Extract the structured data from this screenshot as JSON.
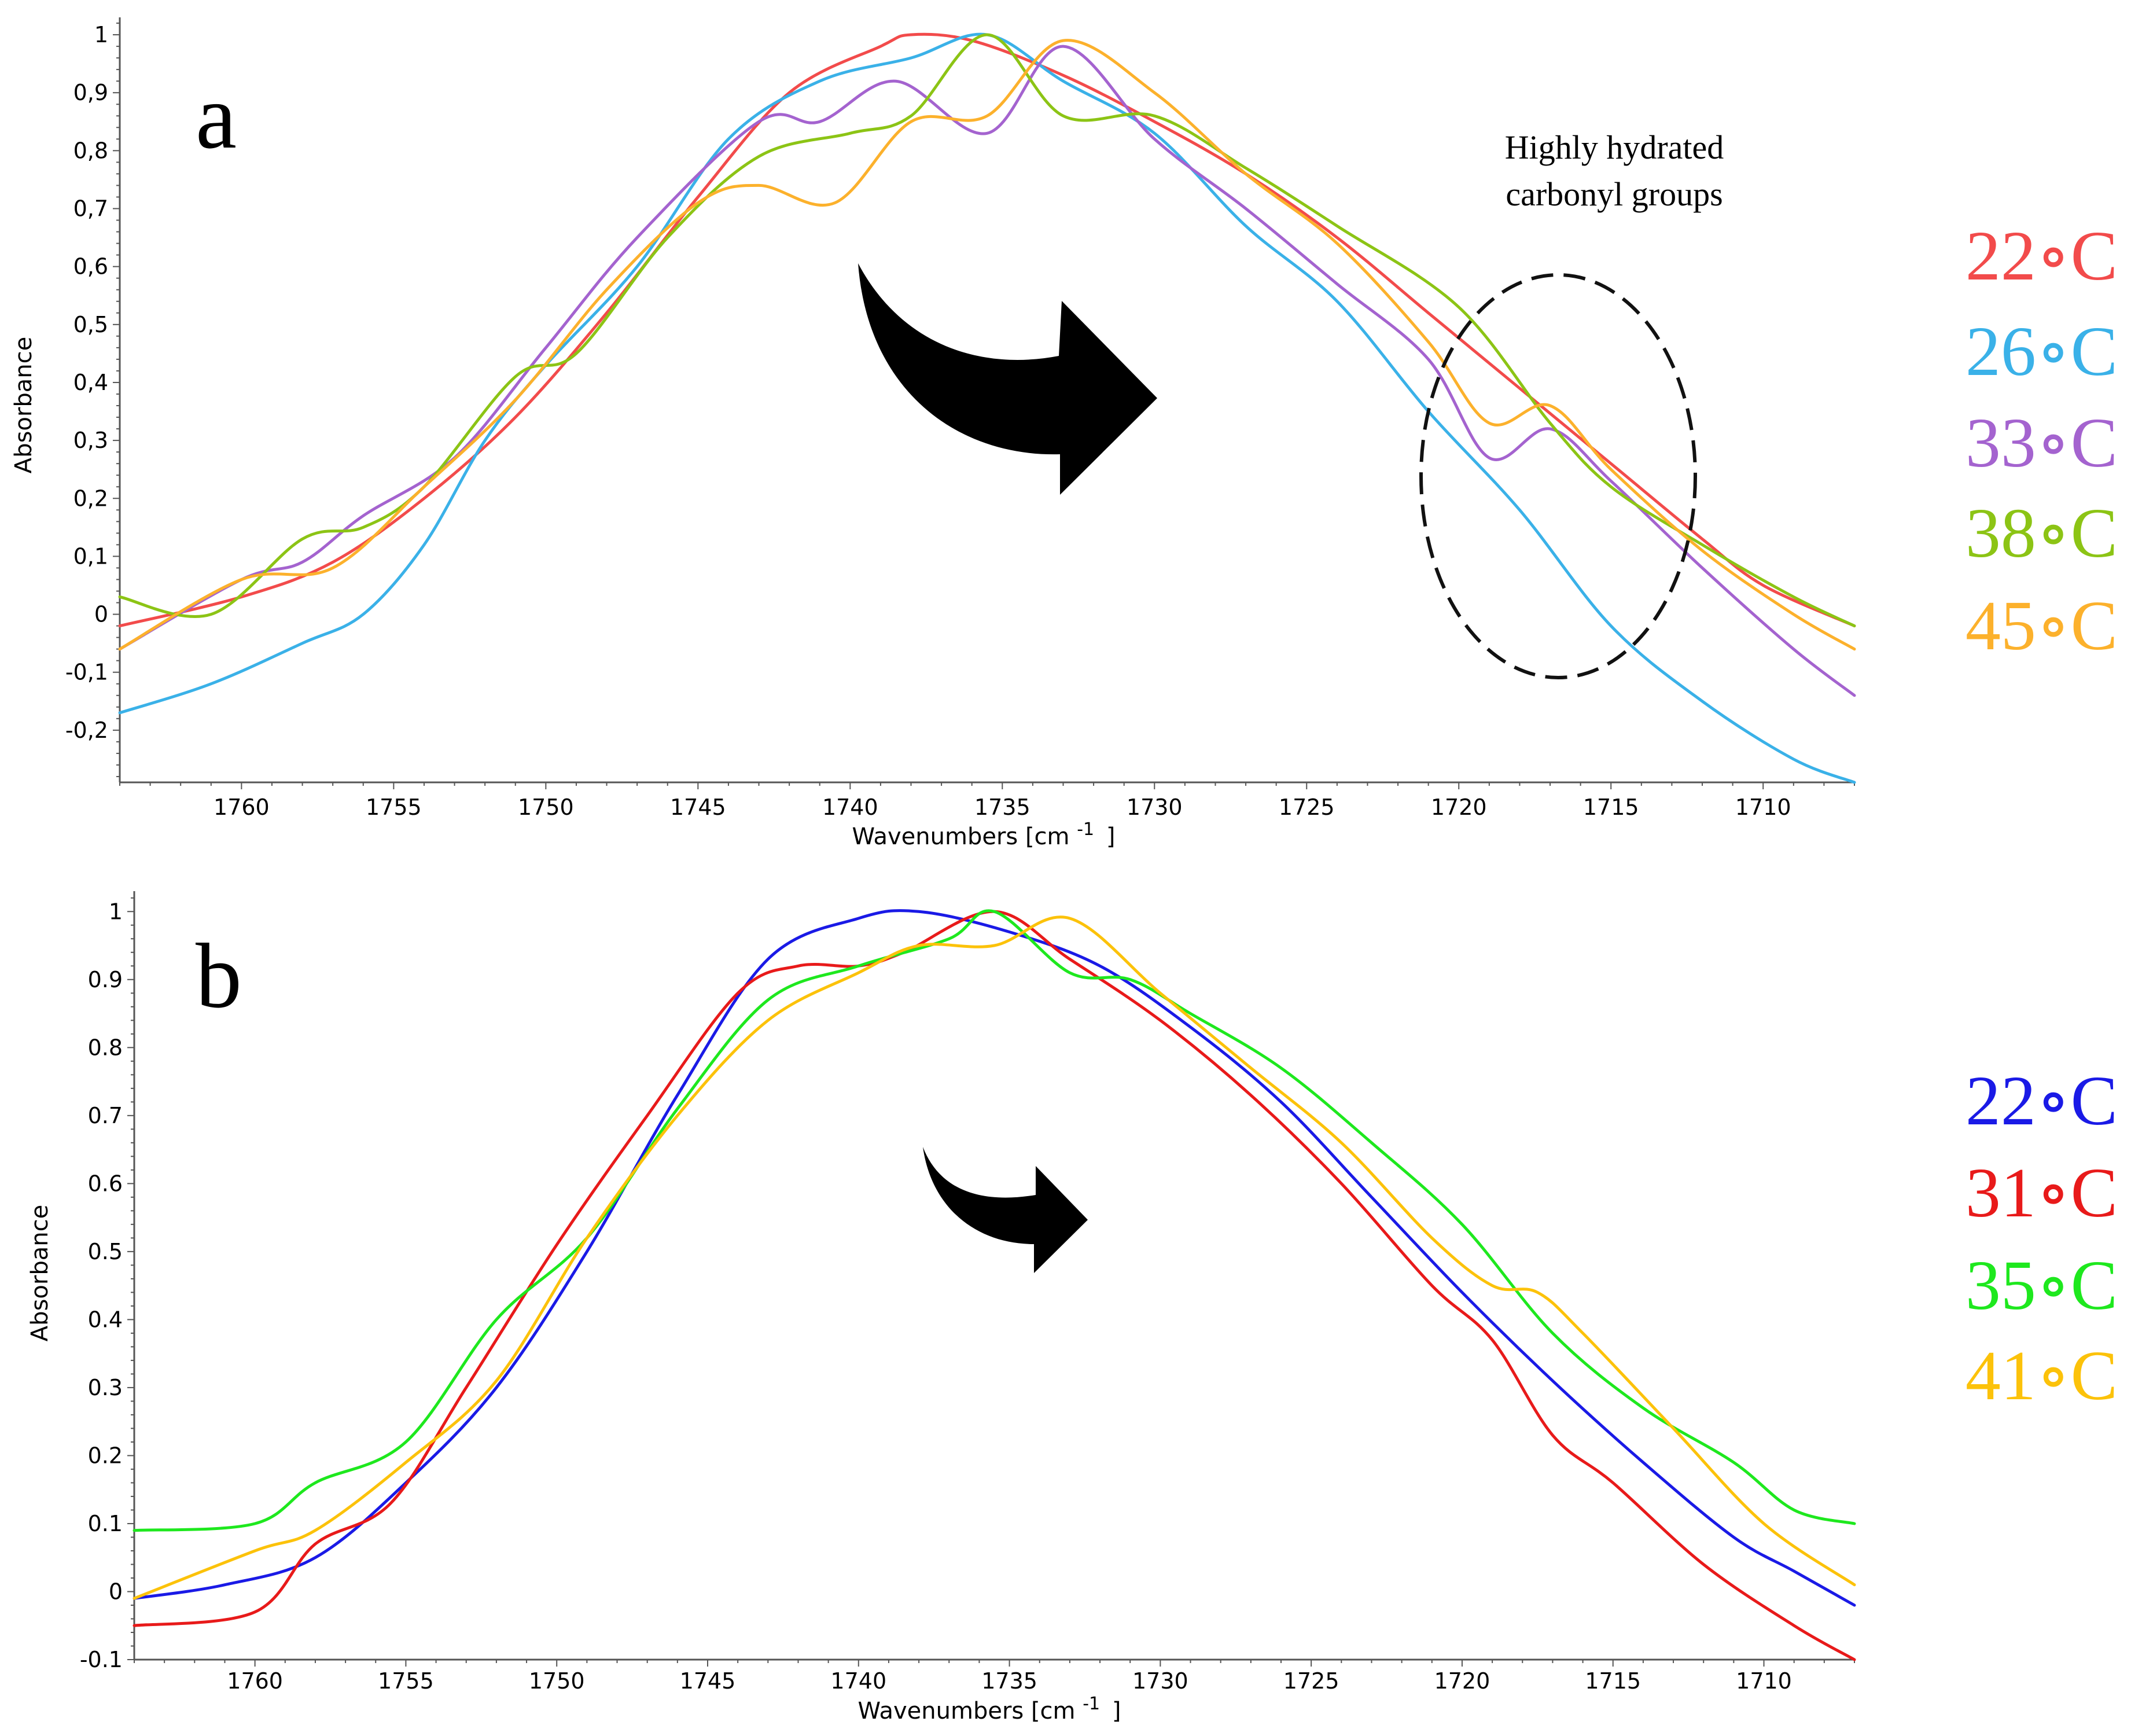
{
  "chart_data": [
    {
      "type": "line",
      "panel_label": "a",
      "xlabel": "Wavenumbers [cm",
      "xlabel_sup": "-1",
      "xlabel_end": "]",
      "ylabel": "Absorbance",
      "xlim": [
        1764,
        1707
      ],
      "ylim": [
        -0.29,
        1.03
      ],
      "x_ticks": [
        1760,
        1755,
        1750,
        1745,
        1740,
        1735,
        1730,
        1725,
        1720,
        1715,
        1710
      ],
      "x_tick_labels": [
        "1760",
        "1755",
        "1750",
        "1745",
        "1740",
        "1735",
        "1730",
        "1725",
        "1720",
        "1715",
        "1710"
      ],
      "y_ticks": [
        1,
        0.9,
        0.8,
        0.7,
        0.6,
        0.5,
        0.4,
        0.3,
        0.2,
        0.1,
        0,
        -0.1,
        -0.2
      ],
      "y_tick_labels": [
        "1",
        "0,9",
        "0,8",
        "0,7",
        "0,6",
        "0,5",
        "0,4",
        "0,3",
        "0,2",
        "0,1",
        "0",
        "-0,1",
        "-0,2"
      ],
      "annotation": [
        "Highly hydrated",
        "carbonyl groups"
      ],
      "series": [
        {
          "name": "22∘C",
          "color": "#f24b4b",
          "x": [
            1764,
            1760,
            1757,
            1754,
            1751,
            1748,
            1745,
            1742,
            1739,
            1738,
            1736,
            1733,
            1730,
            1727,
            1724,
            1721,
            1718,
            1715,
            1712,
            1710,
            1707
          ],
          "y": [
            -0.02,
            0.03,
            0.09,
            0.2,
            0.34,
            0.52,
            0.72,
            0.9,
            0.98,
            1.0,
            0.99,
            0.93,
            0.85,
            0.76,
            0.65,
            0.52,
            0.39,
            0.26,
            0.13,
            0.05,
            -0.02
          ]
        },
        {
          "name": "26∘C",
          "color": "#3ab1e8",
          "x": [
            1764,
            1761,
            1758,
            1756,
            1754,
            1752,
            1750,
            1747,
            1744,
            1741,
            1738,
            1735.5,
            1733,
            1730,
            1727,
            1724,
            1721,
            1718,
            1715,
            1712,
            1709,
            1707
          ],
          "y": [
            -0.17,
            -0.12,
            -0.05,
            0.0,
            0.12,
            0.3,
            0.43,
            0.6,
            0.82,
            0.92,
            0.96,
            1.0,
            0.92,
            0.83,
            0.67,
            0.54,
            0.35,
            0.18,
            -0.02,
            -0.15,
            -0.25,
            -0.29
          ]
        },
        {
          "name": "33∘C",
          "color": "#a463cf",
          "x": [
            1764,
            1760,
            1758,
            1756,
            1753,
            1750,
            1747,
            1743,
            1741,
            1738.5,
            1735.5,
            1733,
            1730,
            1727,
            1724,
            1721,
            1719,
            1717,
            1715,
            1712,
            1709,
            1707
          ],
          "y": [
            -0.06,
            0.06,
            0.09,
            0.17,
            0.27,
            0.46,
            0.65,
            0.85,
            0.85,
            0.92,
            0.83,
            0.98,
            0.82,
            0.7,
            0.57,
            0.44,
            0.27,
            0.32,
            0.23,
            0.08,
            -0.06,
            -0.14
          ]
        },
        {
          "name": "38∘C",
          "color": "#8cc415",
          "x": [
            1764,
            1761,
            1758,
            1756,
            1754,
            1751,
            1749,
            1746,
            1743,
            1740,
            1738,
            1735.5,
            1733,
            1730,
            1727,
            1724,
            1720,
            1717,
            1715,
            1712,
            1709,
            1707
          ],
          "y": [
            0.03,
            0.0,
            0.13,
            0.15,
            0.22,
            0.41,
            0.45,
            0.65,
            0.79,
            0.83,
            0.86,
            1.0,
            0.86,
            0.86,
            0.77,
            0.67,
            0.53,
            0.33,
            0.22,
            0.12,
            0.03,
            -0.02
          ]
        },
        {
          "name": "45∘C",
          "color": "#fcb12c",
          "x": [
            1764,
            1760,
            1757,
            1754,
            1751,
            1748,
            1745,
            1743,
            1740.5,
            1738,
            1735.5,
            1733,
            1730,
            1727,
            1724,
            1721,
            1719,
            1717,
            1715,
            1712,
            1709,
            1707
          ],
          "y": [
            -0.06,
            0.06,
            0.08,
            0.22,
            0.37,
            0.56,
            0.71,
            0.74,
            0.71,
            0.85,
            0.86,
            0.99,
            0.9,
            0.76,
            0.64,
            0.47,
            0.33,
            0.36,
            0.25,
            0.11,
            0.0,
            -0.06
          ]
        }
      ]
    },
    {
      "type": "line",
      "panel_label": "b",
      "xlabel": "Wavenumbers [cm",
      "xlabel_sup": "-1",
      "xlabel_end": "]",
      "ylabel": "Absorbance",
      "xlim": [
        1764,
        1707
      ],
      "ylim": [
        -0.1,
        1.03
      ],
      "x_ticks": [
        1760,
        1755,
        1750,
        1745,
        1740,
        1735,
        1730,
        1725,
        1720,
        1715,
        1710
      ],
      "x_tick_labels": [
        "1760",
        "1755",
        "1750",
        "1745",
        "1740",
        "1735",
        "1730",
        "1725",
        "1720",
        "1715",
        "1710"
      ],
      "y_ticks": [
        1,
        0.9,
        0.8,
        0.7,
        0.6,
        0.5,
        0.4,
        0.3,
        0.2,
        0.1,
        0,
        -0.1
      ],
      "y_tick_labels": [
        "1",
        "0.9",
        "0.8",
        "0.7",
        "0.6",
        "0.5",
        "0.4",
        "0.3",
        "0.2",
        "0.1",
        "0",
        "-0.1"
      ],
      "series": [
        {
          "name": "22∘C",
          "color": "#1a1ae6",
          "x": [
            1764,
            1761,
            1758,
            1755,
            1752,
            1749,
            1746,
            1743,
            1740,
            1738,
            1735,
            1732,
            1729,
            1726,
            1723,
            1720,
            1717,
            1714,
            1711,
            1709,
            1707
          ],
          "y": [
            -0.01,
            0.01,
            0.05,
            0.16,
            0.3,
            0.5,
            0.73,
            0.93,
            0.99,
            1.0,
            0.97,
            0.92,
            0.83,
            0.72,
            0.58,
            0.44,
            0.31,
            0.19,
            0.08,
            0.03,
            -0.02
          ]
        },
        {
          "name": "31∘C",
          "color": "#e81a1a",
          "x": [
            1764,
            1760,
            1758,
            1755.5,
            1753,
            1750,
            1747,
            1744,
            1742,
            1740,
            1738.5,
            1735.5,
            1733,
            1730,
            1727,
            1724,
            1721,
            1719,
            1717,
            1715,
            1712,
            1709,
            1707
          ],
          "y": [
            -0.05,
            -0.03,
            0.07,
            0.13,
            0.3,
            0.51,
            0.7,
            0.88,
            0.92,
            0.92,
            0.94,
            1.0,
            0.93,
            0.84,
            0.73,
            0.6,
            0.45,
            0.37,
            0.23,
            0.16,
            0.04,
            -0.05,
            -0.1
          ]
        },
        {
          "name": "35∘C",
          "color": "#1ee81e",
          "x": [
            1764,
            1760,
            1758,
            1755,
            1752,
            1749,
            1746,
            1743,
            1740,
            1737,
            1735.5,
            1733,
            1731,
            1729,
            1726,
            1723,
            1720,
            1717,
            1714,
            1711,
            1709,
            1707
          ],
          "y": [
            0.09,
            0.1,
            0.16,
            0.22,
            0.4,
            0.52,
            0.71,
            0.87,
            0.92,
            0.96,
            1.0,
            0.91,
            0.9,
            0.85,
            0.77,
            0.66,
            0.54,
            0.38,
            0.27,
            0.19,
            0.12,
            0.1
          ]
        },
        {
          "name": "41∘C",
          "color": "#fcc20a",
          "x": [
            1764,
            1760,
            1758,
            1755,
            1752,
            1749,
            1746,
            1743,
            1740,
            1738,
            1735.5,
            1733,
            1730,
            1727,
            1724,
            1721,
            1719,
            1717.5,
            1716,
            1713,
            1710,
            1707
          ],
          "y": [
            -0.01,
            0.06,
            0.09,
            0.19,
            0.31,
            0.52,
            0.7,
            0.84,
            0.91,
            0.95,
            0.95,
            0.99,
            0.88,
            0.77,
            0.66,
            0.52,
            0.45,
            0.44,
            0.38,
            0.24,
            0.1,
            0.01
          ]
        }
      ]
    }
  ]
}
